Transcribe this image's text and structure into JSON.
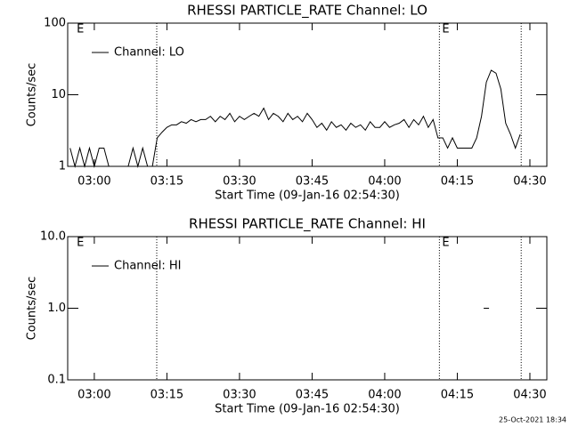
{
  "chart_data": [
    {
      "type": "line",
      "title": "RHESSI PARTICLE_RATE Channel: LO",
      "xlabel": "Start Time (09-Jan-16 02:54:30)",
      "ylabel": "Counts/sec",
      "log": true,
      "legend": "top-left",
      "series": [
        {
          "name": "Channel: LO",
          "color": "#000000",
          "x": [
            175,
            176,
            177,
            178,
            179,
            180,
            181,
            182,
            183,
            184,
            185,
            186,
            187,
            188,
            189,
            190,
            191,
            192,
            193,
            194,
            195,
            196,
            197,
            198,
            199,
            200,
            201,
            202,
            203,
            204,
            205,
            206,
            207,
            208,
            209,
            210,
            211,
            212,
            213,
            214,
            215,
            216,
            217,
            218,
            219,
            220,
            221,
            222,
            223,
            224,
            225,
            226,
            227,
            228,
            229,
            230,
            231,
            232,
            233,
            234,
            235,
            236,
            237,
            238,
            239,
            240,
            241,
            242,
            243,
            244,
            245,
            246,
            247,
            248,
            249,
            250,
            251,
            252,
            253,
            254,
            255,
            256,
            257,
            258,
            259,
            260,
            261,
            262,
            263,
            264,
            265,
            266,
            267,
            268
          ],
          "values": [
            1.8,
            1,
            1.8,
            1,
            1.8,
            1,
            1.8,
            1.8,
            1,
            1,
            1,
            1,
            1,
            1.8,
            1,
            1.8,
            1,
            1,
            2.5,
            3,
            3.5,
            3.8,
            3.8,
            4.2,
            4,
            4.5,
            4.2,
            4.5,
            4.5,
            5,
            4.2,
            5,
            4.5,
            5.5,
            4.2,
            5,
            4.5,
            5,
            5.5,
            5,
            6.5,
            4.5,
            5.5,
            5,
            4.2,
            5.5,
            4.5,
            5,
            4.2,
            5.5,
            4.5,
            3.5,
            4,
            3.2,
            4.2,
            3.5,
            3.8,
            3.2,
            4,
            3.5,
            3.8,
            3.2,
            4.2,
            3.5,
            3.5,
            4.2,
            3.5,
            3.8,
            4,
            4.5,
            3.5,
            4.5,
            3.8,
            5,
            3.5,
            4.5,
            2.5,
            2.5,
            1.8,
            2.5,
            1.8,
            1.8,
            1.8,
            1.8,
            2.5,
            5,
            15,
            22,
            20,
            12,
            4,
            2.8,
            1.8,
            2.8
          ]
        }
      ],
      "xlim": [
        174.5,
        273.5
      ],
      "xticks": [
        {
          "value": 180,
          "label": "03:00"
        },
        {
          "value": 195,
          "label": "03:15"
        },
        {
          "value": 210,
          "label": "03:30"
        },
        {
          "value": 225,
          "label": "03:45"
        },
        {
          "value": 240,
          "label": "04:00"
        },
        {
          "value": 255,
          "label": "04:15"
        },
        {
          "value": 270,
          "label": "04:30"
        }
      ],
      "ylim": [
        1,
        100
      ],
      "yticks": [
        1,
        10,
        100
      ],
      "vlines": [
        192.9,
        251.3,
        268.2
      ],
      "annotations": [
        {
          "text": "E",
          "x": 175.8
        },
        {
          "text": "E",
          "x": 251.3
        }
      ]
    },
    {
      "type": "line",
      "title": "RHESSI PARTICLE_RATE Channel: HI",
      "xlabel": "Start Time (09-Jan-16 02:54:30)",
      "ylabel": "Counts/sec",
      "log": true,
      "legend": "top-left",
      "series": [
        {
          "name": "Channel: HI",
          "color": "#000000",
          "x": [
            261
          ],
          "values": [
            1
          ]
        }
      ],
      "xlim": [
        174.5,
        273.5
      ],
      "xticks": [
        {
          "value": 180,
          "label": "03:00"
        },
        {
          "value": 195,
          "label": "03:15"
        },
        {
          "value": 210,
          "label": "03:30"
        },
        {
          "value": 225,
          "label": "03:45"
        },
        {
          "value": 240,
          "label": "04:00"
        },
        {
          "value": 255,
          "label": "04:15"
        },
        {
          "value": 270,
          "label": "04:30"
        }
      ],
      "ylim": [
        0.1,
        10
      ],
      "yticks": [
        0.1,
        {
          "value": 1,
          "label": "1.0"
        },
        {
          "value": 10,
          "label": "10.0"
        }
      ],
      "vlines": [
        192.9,
        251.3,
        268.2
      ],
      "annotations": [
        {
          "text": "E",
          "x": 175.8
        },
        {
          "text": "E",
          "x": 251.3
        }
      ]
    }
  ],
  "footer": "25-Oct-2021 18:34"
}
